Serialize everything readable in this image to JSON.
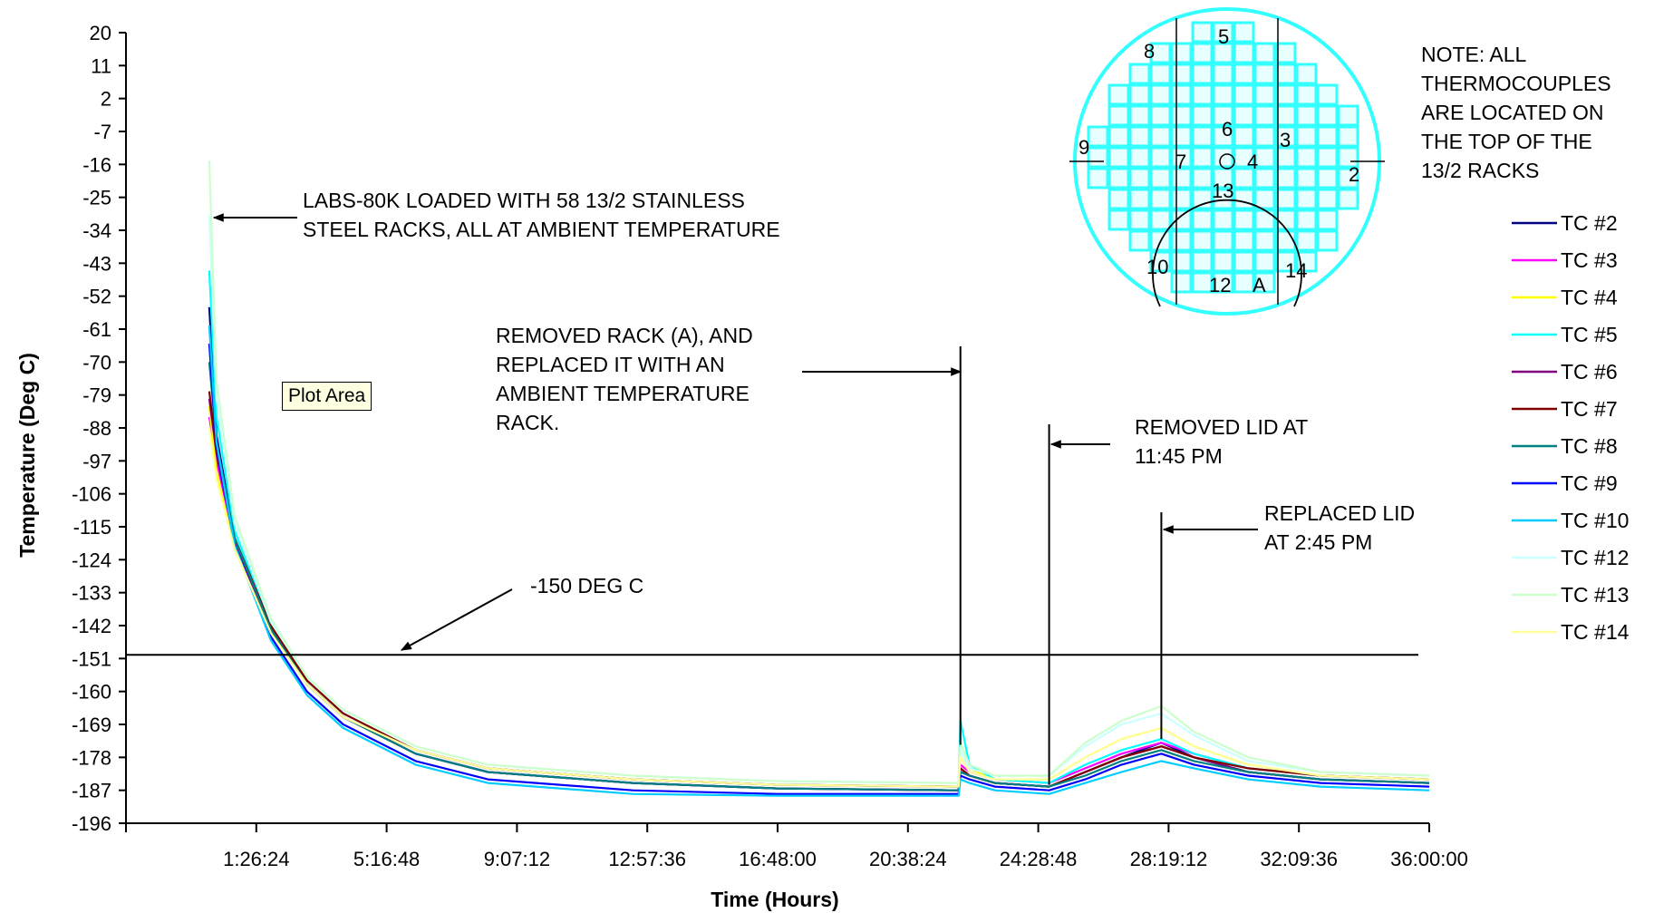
{
  "chart_data": {
    "type": "line",
    "xlabel": "Time (Hours)",
    "ylabel": "Temperature (Deg C)",
    "x_unit": "hours",
    "xlim": [
      0,
      36
    ],
    "ylim": [
      -196,
      20
    ],
    "x_tick_labels": [
      "1:26:24",
      "5:16:48",
      "9:07:12",
      "12:57:36",
      "16:48:00",
      "20:38:24",
      "24:28:48",
      "28:19:12",
      "32:09:36",
      "36:00:00"
    ],
    "y_ticks": [
      20,
      11,
      2,
      -7,
      -16,
      -25,
      -34,
      -43,
      -52,
      -61,
      -70,
      -79,
      -88,
      -97,
      -106,
      -115,
      -124,
      -133,
      -142,
      -151,
      -160,
      -169,
      -178,
      -187,
      -196
    ],
    "grid": false,
    "legend_position": "right",
    "reference_line": {
      "y": -150
    },
    "series": [
      {
        "name": "TC #2",
        "color": "#000080",
        "x": [
          2.3,
          2.5,
          3.0,
          4.0,
          5.0,
          6.0,
          8.0,
          10.0,
          14.0,
          18.0,
          23.0,
          23.05,
          23.3,
          24.0,
          25.5,
          26.5,
          27.5,
          28.6,
          29.5,
          31.0,
          33.0,
          36.0
        ],
        "y": [
          -55,
          -90,
          -118,
          -143,
          -158,
          -167,
          -177,
          -182,
          -185,
          -186.5,
          -187,
          -182,
          -183,
          -185,
          -186,
          -182,
          -178,
          -174,
          -178,
          -182,
          -184,
          -185
        ]
      },
      {
        "name": "TC #3",
        "color": "#ff00ff",
        "x": [
          2.3,
          2.5,
          3.0,
          4.0,
          5.0,
          6.0,
          8.0,
          10.0,
          14.0,
          18.0,
          23.0,
          23.05,
          23.3,
          24.0,
          25.5,
          26.5,
          27.5,
          28.6,
          29.5,
          31.0,
          33.0,
          36.0
        ],
        "y": [
          -85,
          -97,
          -119,
          -143,
          -158,
          -167,
          -176,
          -181,
          -184,
          -185.5,
          -186,
          -180,
          -182,
          -184,
          -185,
          -181,
          -177,
          -174,
          -177,
          -181,
          -183,
          -184
        ]
      },
      {
        "name": "TC #4",
        "color": "#ffff00",
        "x": [
          2.3,
          2.5,
          3.0,
          4.0,
          5.0,
          6.0,
          8.0,
          10.0,
          14.0,
          18.0,
          23.0,
          23.05,
          23.3,
          24.0,
          25.5,
          26.5,
          27.5,
          28.6,
          29.5,
          31.0,
          33.0,
          36.0
        ],
        "y": [
          -82,
          -100,
          -121,
          -144,
          -158,
          -167,
          -176,
          -181,
          -184,
          -185.5,
          -186,
          -176,
          -181,
          -184,
          -184,
          -178,
          -173,
          -170,
          -175,
          -180,
          -183,
          -184
        ]
      },
      {
        "name": "TC #5",
        "color": "#00ffff",
        "x": [
          2.3,
          2.5,
          3.0,
          4.0,
          5.0,
          6.0,
          8.0,
          10.0,
          14.0,
          18.0,
          23.0,
          23.05,
          23.3,
          24.0,
          25.5,
          26.5,
          27.5,
          28.6,
          29.5,
          31.0,
          33.0,
          36.0
        ],
        "y": [
          -45,
          -85,
          -116,
          -142,
          -157,
          -166,
          -176,
          -181,
          -184,
          -185.5,
          -186,
          -168,
          -180,
          -184,
          -185,
          -180,
          -176,
          -173,
          -177,
          -181,
          -183,
          -184
        ]
      },
      {
        "name": "TC #6",
        "color": "#800080",
        "x": [
          2.3,
          2.5,
          3.0,
          4.0,
          5.0,
          6.0,
          8.0,
          10.0,
          14.0,
          18.0,
          23.0,
          23.05,
          23.3,
          24.0,
          25.5,
          26.5,
          27.5,
          28.6,
          29.5,
          31.0,
          33.0,
          36.0
        ],
        "y": [
          -80,
          -95,
          -119,
          -143,
          -158,
          -167,
          -177,
          -182,
          -185,
          -186.5,
          -187,
          -181,
          -183,
          -185,
          -186,
          -182,
          -178,
          -175,
          -178,
          -182,
          -184,
          -185
        ]
      },
      {
        "name": "TC #7",
        "color": "#800000",
        "x": [
          2.3,
          2.5,
          3.0,
          4.0,
          5.0,
          6.0,
          8.0,
          10.0,
          14.0,
          18.0,
          23.0,
          23.05,
          23.3,
          24.0,
          25.5,
          26.5,
          27.5,
          28.6,
          29.5,
          31.0,
          33.0,
          36.0
        ],
        "y": [
          -78,
          -94,
          -118,
          -142,
          -157,
          -166,
          -176,
          -181,
          -184,
          -185.5,
          -186,
          -181,
          -183,
          -185,
          -186,
          -182,
          -178,
          -175,
          -178,
          -181,
          -183,
          -184
        ]
      },
      {
        "name": "TC #8",
        "color": "#008080",
        "x": [
          2.3,
          2.5,
          3.0,
          4.0,
          5.0,
          6.0,
          8.0,
          10.0,
          14.0,
          18.0,
          23.0,
          23.05,
          23.3,
          24.0,
          25.5,
          26.5,
          27.5,
          28.6,
          29.5,
          31.0,
          33.0,
          36.0
        ],
        "y": [
          -70,
          -92,
          -118,
          -143,
          -158,
          -167,
          -177,
          -182,
          -185,
          -186.5,
          -187,
          -182,
          -183,
          -185,
          -186,
          -183,
          -179,
          -176,
          -179,
          -182,
          -184,
          -185
        ]
      },
      {
        "name": "TC #9",
        "color": "#0000ff",
        "x": [
          2.3,
          2.5,
          3.0,
          4.0,
          5.0,
          6.0,
          8.0,
          10.0,
          14.0,
          18.0,
          23.0,
          23.05,
          23.3,
          24.0,
          25.5,
          26.5,
          27.5,
          28.6,
          29.5,
          31.0,
          33.0,
          36.0
        ],
        "y": [
          -65,
          -93,
          -120,
          -145,
          -160,
          -169,
          -179,
          -184,
          -187,
          -188,
          -188,
          -183,
          -184,
          -186,
          -187,
          -184,
          -180,
          -177,
          -180,
          -183,
          -185,
          -186
        ]
      },
      {
        "name": "TC #10",
        "color": "#00ccff",
        "x": [
          2.3,
          2.5,
          3.0,
          4.0,
          5.0,
          6.0,
          8.0,
          10.0,
          14.0,
          18.0,
          23.0,
          23.05,
          23.3,
          24.0,
          25.5,
          26.5,
          27.5,
          28.6,
          29.5,
          31.0,
          33.0,
          36.0
        ],
        "y": [
          -60,
          -92,
          -120,
          -146,
          -161,
          -170,
          -180,
          -185,
          -188,
          -188.5,
          -188.5,
          -184,
          -185,
          -187,
          -188,
          -185,
          -182,
          -179,
          -181,
          -184,
          -186,
          -187
        ]
      },
      {
        "name": "TC #12",
        "color": "#ccffff",
        "x": [
          2.3,
          2.5,
          3.0,
          4.0,
          5.0,
          6.0,
          8.0,
          10.0,
          14.0,
          18.0,
          23.0,
          23.05,
          23.3,
          24.0,
          25.5,
          26.5,
          27.5,
          28.6,
          29.5,
          31.0,
          33.0,
          36.0
        ],
        "y": [
          -30,
          -80,
          -114,
          -141,
          -156,
          -165,
          -175,
          -180,
          -183,
          -184.5,
          -185,
          -176,
          -181,
          -183,
          -183,
          -175,
          -169,
          -166,
          -172,
          -179,
          -182,
          -183
        ]
      },
      {
        "name": "TC #13",
        "color": "#ccffcc",
        "x": [
          2.3,
          2.5,
          3.0,
          4.0,
          5.0,
          6.0,
          8.0,
          10.0,
          14.0,
          18.0,
          23.0,
          23.05,
          23.3,
          24.0,
          25.5,
          26.5,
          27.5,
          28.6,
          29.5,
          31.0,
          33.0,
          36.0
        ],
        "y": [
          -15,
          -75,
          -112,
          -140,
          -156,
          -165,
          -175,
          -180,
          -183,
          -184.5,
          -185,
          -174,
          -180,
          -183,
          -183,
          -174,
          -168,
          -164,
          -171,
          -178,
          -182,
          -183
        ]
      },
      {
        "name": "TC #14",
        "color": "#ffff99",
        "x": [
          2.3,
          2.5,
          3.0,
          4.0,
          5.0,
          6.0,
          8.0,
          10.0,
          14.0,
          18.0,
          23.0,
          23.05,
          23.3,
          24.0,
          25.5,
          26.5,
          27.5,
          28.6,
          29.5,
          31.0,
          33.0,
          36.0
        ],
        "y": [
          -88,
          -102,
          -121,
          -144,
          -158,
          -167,
          -176,
          -181,
          -184,
          -185.5,
          -186,
          -178,
          -182,
          -184,
          -184,
          -178,
          -173,
          -170,
          -175,
          -180,
          -183,
          -184
        ]
      }
    ],
    "annotations": [
      {
        "lines": [
          "LABS-80K LOADED WITH 58 13/2 STAINLESS",
          "STEEL RACKS, ALL  AT AMBIENT TEMPERATURE"
        ]
      },
      {
        "lines": [
          "REMOVED RACK (A), AND",
          "REPLACED IT WITH AN",
          "AMBIENT TEMPERATURE",
          "RACK."
        ]
      },
      {
        "lines": [
          "REMOVED LID AT",
          "11:45 PM"
        ]
      },
      {
        "lines": [
          "REPLACED LID",
          "AT 2:45 PM"
        ]
      },
      {
        "lines": [
          "-150 DEG C"
        ]
      },
      {
        "lines": [
          "NOTE: ALL",
          "THERMOCOUPLES",
          "ARE LOCATED ON",
          "THE TOP OF THE",
          "13/2 RACKS"
        ]
      }
    ],
    "rack_labels": [
      "5",
      "8",
      "6",
      "9",
      "3",
      "7",
      "4",
      "2",
      "13",
      "10",
      "14",
      "12",
      "A"
    ],
    "vertical_markers_x": [
      23.05,
      25.5,
      28.6
    ]
  },
  "tooltip": "Plot Area",
  "colors": {
    "diagram_fill": "#33ffff",
    "diagram_cell": "#e8ffff",
    "axis": "#000000"
  }
}
